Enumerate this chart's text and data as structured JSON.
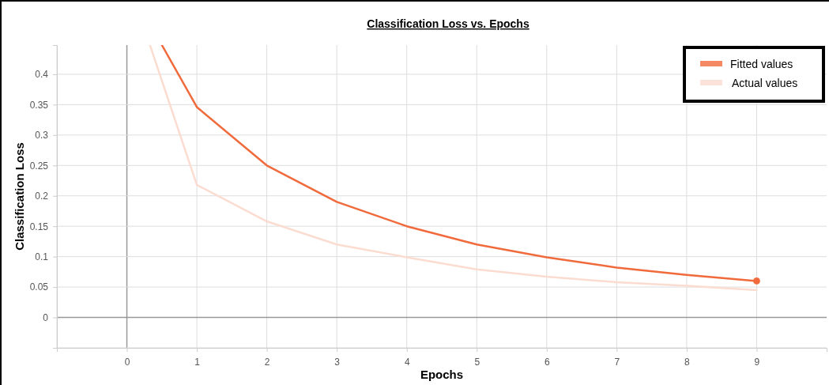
{
  "chart_data": {
    "type": "line",
    "title": "Classification Loss vs. Epochs",
    "xlabel": "Epochs",
    "ylabel": "Classification Loss",
    "series": [
      {
        "name": "Fitted values",
        "color": "#f06a3c",
        "x": [
          0.5,
          1,
          2,
          3,
          4,
          5,
          6,
          7,
          8,
          9
        ],
        "values": [
          0.448,
          0.346,
          0.25,
          0.19,
          0.15,
          0.12,
          0.099,
          0.082,
          0.07,
          0.06
        ]
      },
      {
        "name": "Actual values",
        "color": "#fbdcd1",
        "x": [
          0.33,
          1,
          2,
          3,
          4,
          5,
          6,
          7,
          8,
          9
        ],
        "values": [
          0.448,
          0.218,
          0.158,
          0.12,
          0.099,
          0.079,
          0.067,
          0.058,
          0.052,
          0.045
        ]
      },
      {
        "type": "scatter",
        "color": "#f06a3c",
        "x": [
          9
        ],
        "values": [
          0.06
        ],
        "marker": "circle"
      }
    ],
    "xlim": [
      -1,
      10
    ],
    "xticks": [
      {
        "value": -1,
        "label": null
      },
      0,
      1,
      2,
      3,
      4,
      5,
      6,
      7,
      8,
      9
    ],
    "ylim": [
      -0.05,
      0.448
    ],
    "yticks": [
      {
        "value": -0.05,
        "label": null
      },
      0,
      0.05,
      0.1,
      0.15,
      0.2,
      0.25,
      0.3,
      0.35,
      0.4
    ],
    "grid": true,
    "legend": "top right",
    "marker": "none",
    "line_style": "solid"
  }
}
